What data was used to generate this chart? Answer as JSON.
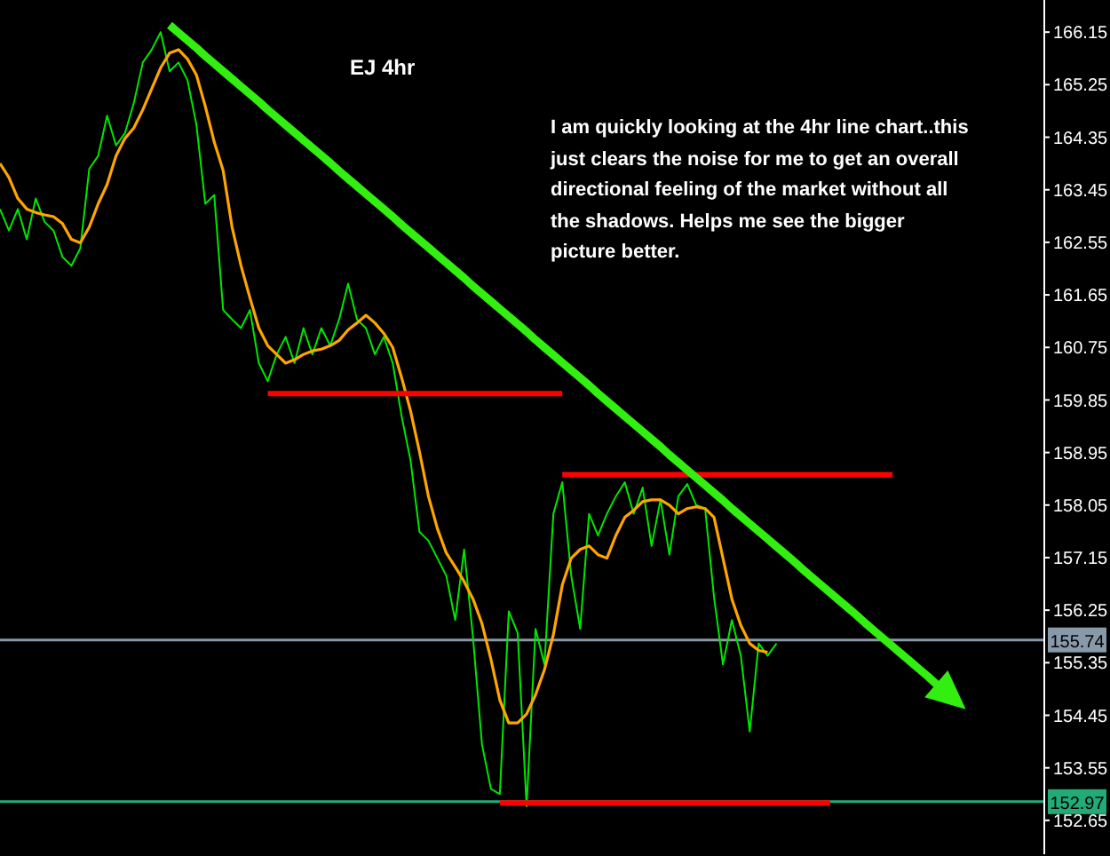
{
  "chart_data": {
    "type": "line",
    "title": "EJ 4hr",
    "annotations": [
      "I am quickly looking at the 4hr line chart..this just clears the noise for me to get an overall directional feeling of the market without all the shadows. Helps me see the bigger picture better."
    ],
    "categories": [
      null,
      null,
      null,
      null,
      null,
      null,
      null,
      null,
      null,
      null,
      null,
      null,
      null,
      null,
      null,
      null,
      null,
      null,
      null,
      null,
      null,
      null,
      null,
      null,
      null,
      null,
      null,
      null,
      null,
      null,
      null,
      null,
      null,
      null,
      null,
      null,
      null,
      null,
      null,
      null,
      null,
      null,
      null,
      null,
      null,
      null,
      null,
      null,
      null,
      null,
      null,
      null,
      null,
      null,
      null,
      null,
      null,
      null,
      null,
      null,
      null,
      null,
      null,
      null,
      null,
      null,
      null,
      null,
      null,
      null,
      null,
      null,
      null,
      null,
      null,
      null,
      null,
      null,
      null,
      null,
      null,
      null,
      null,
      null,
      null,
      null,
      null,
      null,
      null,
      null,
      null,
      null,
      null,
      null,
      null,
      null,
      null,
      null,
      null,
      null,
      null,
      null,
      null,
      null,
      null,
      null,
      null,
      null,
      null,
      null,
      null,
      null,
      null,
      null,
      null,
      null,
      null,
      null
    ],
    "series": [
      {
        "color": "#00e600",
        "values": [
          163.12,
          162.75,
          163.12,
          162.6,
          163.3,
          162.9,
          162.75,
          162.3,
          162.15,
          162.45,
          163.81,
          164.03,
          164.72,
          164.21,
          164.42,
          164.94,
          165.63,
          165.85,
          166.15,
          165.48,
          165.63,
          165.33,
          164.57,
          163.21,
          163.36,
          161.39,
          161.23,
          161.08,
          161.39,
          160.48,
          160.17,
          160.63,
          160.93,
          160.48,
          161.08,
          160.63,
          161.08,
          160.78,
          161.23,
          161.84,
          161.23,
          161.08,
          160.63,
          160.93,
          160.48,
          159.57,
          158.81,
          157.59,
          157.44,
          157.14,
          156.84,
          156.08,
          157.29,
          155.77,
          153.95,
          153.19,
          153.1,
          156.23,
          155.86,
          152.89,
          155.93,
          155.32,
          157.9,
          158.44,
          156.84,
          155.93,
          157.9,
          157.53,
          157.9,
          158.2,
          158.44,
          157.9,
          158.35,
          157.35,
          158.14,
          157.2,
          158.2,
          158.41,
          158.05,
          157.99,
          156.47,
          155.32,
          156.08,
          155.47,
          154.17,
          155.68,
          155.47,
          155.68,
          null,
          null,
          null,
          null,
          null,
          null,
          null,
          null,
          null,
          null,
          null,
          null,
          null,
          null,
          null,
          null,
          null,
          null,
          null,
          null,
          null,
          null,
          null,
          null,
          null,
          null,
          null,
          null,
          null,
          null
        ]
      },
      {
        "color": "#ffa500",
        "values": [
          163.9,
          163.66,
          163.3,
          163.12,
          163.06,
          163.02,
          162.99,
          162.87,
          162.6,
          162.54,
          162.81,
          163.21,
          163.54,
          164.03,
          164.33,
          164.51,
          164.82,
          165.18,
          165.54,
          165.79,
          165.85,
          165.69,
          165.42,
          164.88,
          164.27,
          163.78,
          162.81,
          162.15,
          161.6,
          161.08,
          160.78,
          160.63,
          160.48,
          160.54,
          160.63,
          160.69,
          160.72,
          160.78,
          160.87,
          161.05,
          161.17,
          161.3,
          161.17,
          160.99,
          160.75,
          160.23,
          159.66,
          158.96,
          158.2,
          157.65,
          157.23,
          156.99,
          156.74,
          156.44,
          156.02,
          155.41,
          154.71,
          154.32,
          154.32,
          154.47,
          154.8,
          155.23,
          155.83,
          156.68,
          157.14,
          157.29,
          157.35,
          157.2,
          157.14,
          157.53,
          157.84,
          157.96,
          158.11,
          158.14,
          158.14,
          158.05,
          157.9,
          157.99,
          158.02,
          157.99,
          157.84,
          157.14,
          156.44,
          155.99,
          155.68,
          155.56,
          155.53,
          null,
          null,
          null,
          null,
          null,
          null,
          null,
          null,
          null,
          null,
          null,
          null,
          null,
          null,
          null,
          null,
          null,
          null,
          null,
          null,
          null,
          null,
          null,
          null,
          null,
          null,
          null,
          null,
          null,
          null,
          null
        ]
      },
      {
        "color": "#ff0000",
        "values": [
          null,
          null,
          null,
          null,
          null,
          null,
          null,
          null,
          null,
          null,
          null,
          null,
          null,
          null,
          null,
          null,
          null,
          null,
          null,
          null,
          null,
          null,
          null,
          null,
          null,
          null,
          null,
          null,
          null,
          null,
          159.96,
          159.96,
          159.96,
          159.96,
          159.96,
          159.96,
          159.96,
          159.96,
          159.96,
          159.96,
          159.96,
          159.96,
          159.96,
          159.96,
          159.96,
          159.96,
          159.96,
          159.96,
          159.96,
          159.96,
          159.96,
          159.96,
          159.96,
          159.96,
          159.96,
          159.96,
          159.96,
          159.96,
          159.96,
          159.96,
          159.96,
          159.96,
          159.96,
          159.96,
          null,
          null,
          null,
          null,
          null,
          null,
          null,
          null,
          null,
          null,
          null,
          null,
          null,
          null,
          null,
          null,
          null,
          null,
          null,
          null,
          null,
          null,
          null,
          null,
          null,
          null,
          null,
          null,
          null,
          null,
          null,
          null,
          null,
          null,
          null,
          null,
          null,
          null,
          null,
          null,
          null,
          null,
          null,
          null,
          null,
          null,
          null,
          null,
          null,
          null,
          null,
          null,
          null,
          null
        ]
      },
      {
        "color": "#ff0000",
        "values": [
          null,
          null,
          null,
          null,
          null,
          null,
          null,
          null,
          null,
          null,
          null,
          null,
          null,
          null,
          null,
          null,
          null,
          null,
          null,
          null,
          null,
          null,
          null,
          null,
          null,
          null,
          null,
          null,
          null,
          null,
          null,
          null,
          null,
          null,
          null,
          null,
          null,
          null,
          null,
          null,
          null,
          null,
          null,
          null,
          null,
          null,
          null,
          null,
          null,
          null,
          null,
          null,
          null,
          null,
          null,
          null,
          null,
          null,
          null,
          null,
          null,
          null,
          null,
          158.57,
          158.57,
          158.57,
          158.57,
          158.57,
          158.57,
          158.57,
          158.57,
          158.57,
          158.57,
          158.57,
          158.57,
          158.57,
          158.57,
          158.57,
          158.57,
          158.57,
          158.57,
          158.57,
          158.57,
          158.57,
          158.57,
          158.57,
          158.57,
          158.57,
          158.57,
          158.57,
          158.57,
          158.57,
          158.57,
          158.57,
          158.57,
          158.57,
          158.57,
          158.57,
          158.57,
          158.57,
          158.57,
          null,
          null,
          null,
          null,
          null,
          null,
          null,
          null,
          null,
          null,
          null,
          null,
          null,
          null,
          null,
          null,
          null
        ]
      },
      {
        "color": "#ff0000",
        "values": [
          null,
          null,
          null,
          null,
          null,
          null,
          null,
          null,
          null,
          null,
          null,
          null,
          null,
          null,
          null,
          null,
          null,
          null,
          null,
          null,
          null,
          null,
          null,
          null,
          null,
          null,
          null,
          null,
          null,
          null,
          null,
          null,
          null,
          null,
          null,
          null,
          null,
          null,
          null,
          null,
          null,
          null,
          null,
          null,
          null,
          null,
          null,
          null,
          null,
          null,
          null,
          null,
          null,
          null,
          null,
          null,
          152.95,
          152.95,
          152.95,
          152.95,
          152.95,
          152.95,
          152.95,
          152.95,
          152.95,
          152.95,
          152.95,
          152.95,
          152.95,
          152.95,
          152.95,
          152.95,
          152.95,
          152.95,
          152.95,
          152.95,
          152.95,
          152.95,
          152.95,
          152.95,
          152.95,
          152.95,
          152.95,
          152.95,
          152.95,
          152.95,
          152.95,
          152.95,
          152.95,
          152.95,
          152.95,
          152.95,
          152.95,
          152.95,
          null,
          null,
          null,
          null,
          null,
          null,
          null,
          null,
          null,
          null,
          null,
          null,
          null,
          null,
          null,
          null,
          null,
          null,
          null,
          null,
          null,
          null,
          null,
          null
        ]
      },
      {
        "color": "#33ee11",
        "values": [
          null,
          null,
          null,
          null,
          null,
          null,
          null,
          null,
          null,
          null,
          null,
          null,
          null,
          null,
          null,
          null,
          null,
          null,
          null,
          166.27,
          166.14,
          166.01,
          165.88,
          165.74,
          165.61,
          165.48,
          165.35,
          165.22,
          165.09,
          164.96,
          164.82,
          164.69,
          164.56,
          164.43,
          164.3,
          164.17,
          164.04,
          163.91,
          163.77,
          163.64,
          163.51,
          163.38,
          163.25,
          163.12,
          162.99,
          162.85,
          162.72,
          162.59,
          162.46,
          162.33,
          162.2,
          162.07,
          161.94,
          161.8,
          161.67,
          161.54,
          161.41,
          161.28,
          161.15,
          161.02,
          160.88,
          160.75,
          160.62,
          160.49,
          160.36,
          160.23,
          160.1,
          159.96,
          159.83,
          159.7,
          159.57,
          159.44,
          159.31,
          159.18,
          159.05,
          158.91,
          158.78,
          158.65,
          158.52,
          158.39,
          158.26,
          158.13,
          157.99,
          157.86,
          157.73,
          157.6,
          157.47,
          157.34,
          157.21,
          157.08,
          156.94,
          156.81,
          156.68,
          156.55,
          156.42,
          156.29,
          156.16,
          156.02,
          155.89,
          155.76,
          155.63,
          155.5,
          155.37,
          155.24,
          155.11,
          154.97,
          154.84,
          154.71,
          null,
          null,
          null,
          null,
          null,
          null,
          null,
          null,
          null,
          null
        ]
      }
    ],
    "ref_lines": [
      {
        "axis": "y",
        "value": 155.74,
        "label": "155.74",
        "color": "#8899aa"
      },
      {
        "axis": "y",
        "value": 152.97,
        "label": "152.97",
        "color": "#22aa77"
      }
    ],
    "ylim": [
      152.07,
      166.7
    ],
    "yticks": [
      166.15,
      165.25,
      164.35,
      163.45,
      162.55,
      161.65,
      160.75,
      159.85,
      158.95,
      158.05,
      157.15,
      156.25,
      155.35,
      154.45,
      153.55,
      152.65
    ],
    "tick_labels": "y",
    "grid": false,
    "legend": false,
    "marker": "none",
    "line_style": "solid"
  }
}
